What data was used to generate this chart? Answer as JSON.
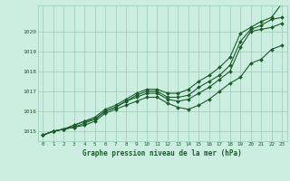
{
  "title": "Graphe pression niveau de la mer (hPa)",
  "background_color": "#cceee0",
  "grid_color": "#99ccbb",
  "line_color": "#1a5c2a",
  "xlim": [
    -0.5,
    23.5
  ],
  "ylim": [
    1014.5,
    1021.3
  ],
  "yticks": [
    1015,
    1016,
    1017,
    1018,
    1019,
    1020
  ],
  "xticks": [
    0,
    1,
    2,
    3,
    4,
    5,
    6,
    7,
    8,
    9,
    10,
    11,
    12,
    13,
    14,
    15,
    16,
    17,
    18,
    19,
    20,
    21,
    22,
    23
  ],
  "series": [
    [
      1014.8,
      1015.0,
      1015.1,
      1015.2,
      1015.3,
      1015.5,
      1015.9,
      1016.1,
      1016.3,
      1016.5,
      1016.7,
      1016.7,
      1016.4,
      1016.2,
      1016.1,
      1016.3,
      1016.6,
      1017.0,
      1017.4,
      1017.7,
      1018.4,
      1018.6,
      1019.1,
      1019.3
    ],
    [
      1014.8,
      1015.0,
      1015.1,
      1015.2,
      1015.4,
      1015.6,
      1016.0,
      1016.2,
      1016.5,
      1016.7,
      1016.9,
      1016.9,
      1016.6,
      1016.5,
      1016.6,
      1016.9,
      1017.2,
      1017.6,
      1018.0,
      1019.2,
      1020.0,
      1020.1,
      1020.2,
      1020.4
    ],
    [
      1014.8,
      1015.0,
      1015.1,
      1015.3,
      1015.5,
      1015.6,
      1016.0,
      1016.2,
      1016.5,
      1016.8,
      1017.0,
      1017.0,
      1016.7,
      1016.7,
      1016.8,
      1017.2,
      1017.5,
      1017.8,
      1018.3,
      1019.5,
      1020.1,
      1020.3,
      1020.6,
      1020.7
    ],
    [
      1014.8,
      1015.0,
      1015.1,
      1015.3,
      1015.5,
      1015.7,
      1016.1,
      1016.3,
      1016.6,
      1016.9,
      1017.1,
      1017.1,
      1016.9,
      1016.9,
      1017.1,
      1017.5,
      1017.8,
      1018.2,
      1018.7,
      1019.9,
      1020.2,
      1020.5,
      1020.7,
      1021.4
    ]
  ]
}
